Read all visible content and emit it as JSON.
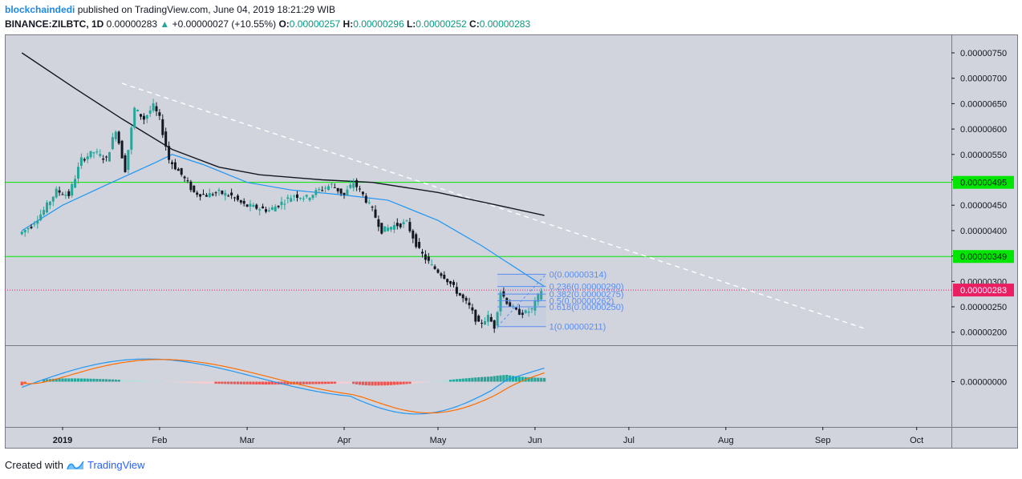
{
  "header": {
    "author": "blockchaindedi",
    "published_text": "published on TradingView.com, June 04, 2019 18:21:29 WIB",
    "symbol": "BINANCE:ZILBTC, 1D",
    "last_price": "0.00000283",
    "change": "+0.00000027 (+10.55%)",
    "o_label": "O:",
    "o_value": "0.00000257",
    "h_label": "H:",
    "h_value": "0.00000296",
    "l_label": "L:",
    "l_value": "0.00000252",
    "c_label": "C:",
    "c_value": "0.00000283"
  },
  "footer": {
    "created_with": "Created with",
    "brand": "TradingView"
  },
  "colors": {
    "background": "#d1d4dc",
    "up": "#26a69a",
    "down": "#131722",
    "ma_long": "#131722",
    "ma_short": "#2196f3",
    "trendline": "#ffffff",
    "support_line": "#00e600",
    "current_price": "#e91e63",
    "fib": "#5b8def",
    "macd": "#2196f3",
    "signal": "#ff6d00",
    "hist_pos_strong": "#26a69a",
    "hist_pos_weak": "#b2dfdb",
    "hist_neg_strong": "#ef5350",
    "hist_neg_weak": "#ffcdd2"
  },
  "chart_data": {
    "type": "candlestick",
    "y_axis_ticks": [
      "0.00000750",
      "0.00000700",
      "0.00000650",
      "0.00000600",
      "0.00000550",
      "0.00000500",
      "0.00000450",
      "0.00000400",
      "0.00000350",
      "0.00000300",
      "0.00000250",
      "0.00000200"
    ],
    "x_axis_ticks": [
      "2019",
      "Feb",
      "Mar",
      "Apr",
      "May",
      "Jun",
      "Jul",
      "Aug",
      "Sep",
      "Oct"
    ],
    "ylim": [
      1.8e-06,
      7.7e-06
    ],
    "horizontal_levels": [
      {
        "label": "0.00000495",
        "value": 4.95e-06
      },
      {
        "label": "0.00000349",
        "value": 3.49e-06
      }
    ],
    "current_price": {
      "label": "0.00000283",
      "value": 2.83e-06
    },
    "fibonacci": [
      {
        "label": "0(0.00000314)",
        "value": 3.14e-06
      },
      {
        "label": "0.236(0.00000290)",
        "value": 2.9e-06
      },
      {
        "label": "0.382(0.00000275)",
        "value": 2.75e-06
      },
      {
        "label": "0.5(0.00000262)",
        "value": 2.62e-06
      },
      {
        "label": "0.618(0.00000250)",
        "value": 2.5e-06
      },
      {
        "label": "1(0.00000211)",
        "value": 2.11e-06
      }
    ],
    "price_series": [
      [
        "2018-12-19",
        3.93e-06
      ],
      [
        "2018-12-23",
        4.1e-06
      ],
      [
        "2018-12-27",
        4.4e-06
      ],
      [
        "2018-12-31",
        4.78e-06
      ],
      [
        "2019-01-04",
        4.7e-06
      ],
      [
        "2019-01-08",
        5.4e-06
      ],
      [
        "2019-01-12",
        5.55e-06
      ],
      [
        "2019-01-16",
        5.4e-06
      ],
      [
        "2019-01-19",
        6e-06
      ],
      [
        "2019-01-22",
        5.2e-06
      ],
      [
        "2019-01-25",
        6.4e-06
      ],
      [
        "2019-01-28",
        6.2e-06
      ],
      [
        "2019-01-31",
        6.45e-06
      ],
      [
        "2019-02-02",
        6.2e-06
      ],
      [
        "2019-02-05",
        5.4e-06
      ],
      [
        "2019-02-09",
        5.1e-06
      ],
      [
        "2019-02-13",
        4.75e-06
      ],
      [
        "2019-02-17",
        4.7e-06
      ],
      [
        "2019-02-21",
        4.75e-06
      ],
      [
        "2019-02-25",
        4.68e-06
      ],
      [
        "2019-03-01",
        4.5e-06
      ],
      [
        "2019-03-05",
        4.45e-06
      ],
      [
        "2019-03-09",
        4.4e-06
      ],
      [
        "2019-03-13",
        4.55e-06
      ],
      [
        "2019-03-17",
        4.7e-06
      ],
      [
        "2019-03-21",
        4.65e-06
      ],
      [
        "2019-03-25",
        4.8e-06
      ],
      [
        "2019-03-29",
        4.9e-06
      ],
      [
        "2019-04-02",
        4.7e-06
      ],
      [
        "2019-04-05",
        4.95e-06
      ],
      [
        "2019-04-08",
        4.7e-06
      ],
      [
        "2019-04-11",
        4.4e-06
      ],
      [
        "2019-04-14",
        4e-06
      ],
      [
        "2019-04-18",
        4.1e-06
      ],
      [
        "2019-04-22",
        4.15e-06
      ],
      [
        "2019-04-26",
        3.6e-06
      ],
      [
        "2019-04-30",
        3.3e-06
      ],
      [
        "2019-05-04",
        3.1e-06
      ],
      [
        "2019-05-08",
        2.8e-06
      ],
      [
        "2019-05-12",
        2.5e-06
      ],
      [
        "2019-05-15",
        2.15e-06
      ],
      [
        "2019-05-18",
        2.3e-06
      ],
      [
        "2019-05-20",
        2.11e-06
      ],
      [
        "2019-05-22",
        2.8e-06
      ],
      [
        "2019-05-24",
        2.6e-06
      ],
      [
        "2019-05-27",
        2.4e-06
      ],
      [
        "2019-05-30",
        2.38e-06
      ],
      [
        "2019-06-01",
        2.45e-06
      ],
      [
        "2019-06-04",
        2.83e-06
      ]
    ],
    "ma_short_series": [
      [
        "2018-12-19",
        4e-06
      ],
      [
        "2019-01-01",
        4.5e-06
      ],
      [
        "2019-01-15",
        4.9e-06
      ],
      [
        "2019-01-31",
        5.35e-06
      ],
      [
        "2019-02-05",
        5.5e-06
      ],
      [
        "2019-02-15",
        5.3e-06
      ],
      [
        "2019-03-01",
        4.95e-06
      ],
      [
        "2019-03-15",
        4.8e-06
      ],
      [
        "2019-04-01",
        4.7e-06
      ],
      [
        "2019-04-15",
        4.6e-06
      ],
      [
        "2019-05-01",
        4.2e-06
      ],
      [
        "2019-05-15",
        3.7e-06
      ],
      [
        "2019-06-04",
        2.9e-06
      ]
    ],
    "ma_long_series": [
      [
        "2018-12-19",
        7.5e-06
      ],
      [
        "2019-01-05",
        6.8e-06
      ],
      [
        "2019-01-20",
        6.2e-06
      ],
      [
        "2019-02-05",
        5.6e-06
      ],
      [
        "2019-02-20",
        5.25e-06
      ],
      [
        "2019-03-05",
        5.1e-06
      ],
      [
        "2019-03-25",
        5e-06
      ],
      [
        "2019-04-10",
        4.95e-06
      ],
      [
        "2019-05-01",
        4.75e-06
      ],
      [
        "2019-05-20",
        4.5e-06
      ],
      [
        "2019-06-04",
        4.3e-06
      ]
    ],
    "trendline": [
      [
        "2019-01-20",
        6.9e-06
      ],
      [
        "2019-09-14",
        2.08e-06
      ]
    ],
    "indicator": {
      "zero_label": "0.00000000",
      "ylim": [
        -1.0,
        1.0
      ]
    }
  }
}
